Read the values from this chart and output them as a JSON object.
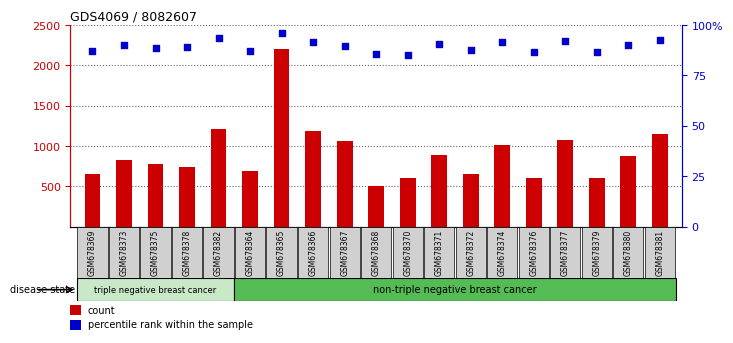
{
  "title": "GDS4069 / 8082607",
  "samples": [
    "GSM678369",
    "GSM678373",
    "GSM678375",
    "GSM678378",
    "GSM678382",
    "GSM678364",
    "GSM678365",
    "GSM678366",
    "GSM678367",
    "GSM678368",
    "GSM678370",
    "GSM678371",
    "GSM678372",
    "GSM678374",
    "GSM678376",
    "GSM678377",
    "GSM678379",
    "GSM678380",
    "GSM678381"
  ],
  "counts": [
    650,
    830,
    780,
    740,
    1210,
    690,
    2200,
    1190,
    1060,
    510,
    600,
    890,
    660,
    1010,
    610,
    1070,
    600,
    880,
    1150
  ],
  "percentiles": [
    2175,
    2255,
    2220,
    2230,
    2345,
    2175,
    2395,
    2295,
    2240,
    2135,
    2130,
    2270,
    2190,
    2295,
    2165,
    2305,
    2165,
    2250,
    2320
  ],
  "group1_count": 5,
  "group1_label": "triple negative breast cancer",
  "group2_label": "non-triple negative breast cancer",
  "bar_color": "#cc0000",
  "dot_color": "#0000cc",
  "ylim_left": [
    0,
    2500
  ],
  "yticks_left": [
    500,
    1000,
    1500,
    2000,
    2500
  ],
  "yticks_right_pos": [
    0,
    625,
    1250,
    1875,
    2500
  ],
  "yticks_right_labels": [
    "0",
    "25",
    "50",
    "75",
    "100%"
  ],
  "group1_bg": "#c8e8c8",
  "group2_bg": "#55bb55",
  "legend_count_label": "count",
  "legend_pct_label": "percentile rank within the sample",
  "disease_state_label": "disease state"
}
